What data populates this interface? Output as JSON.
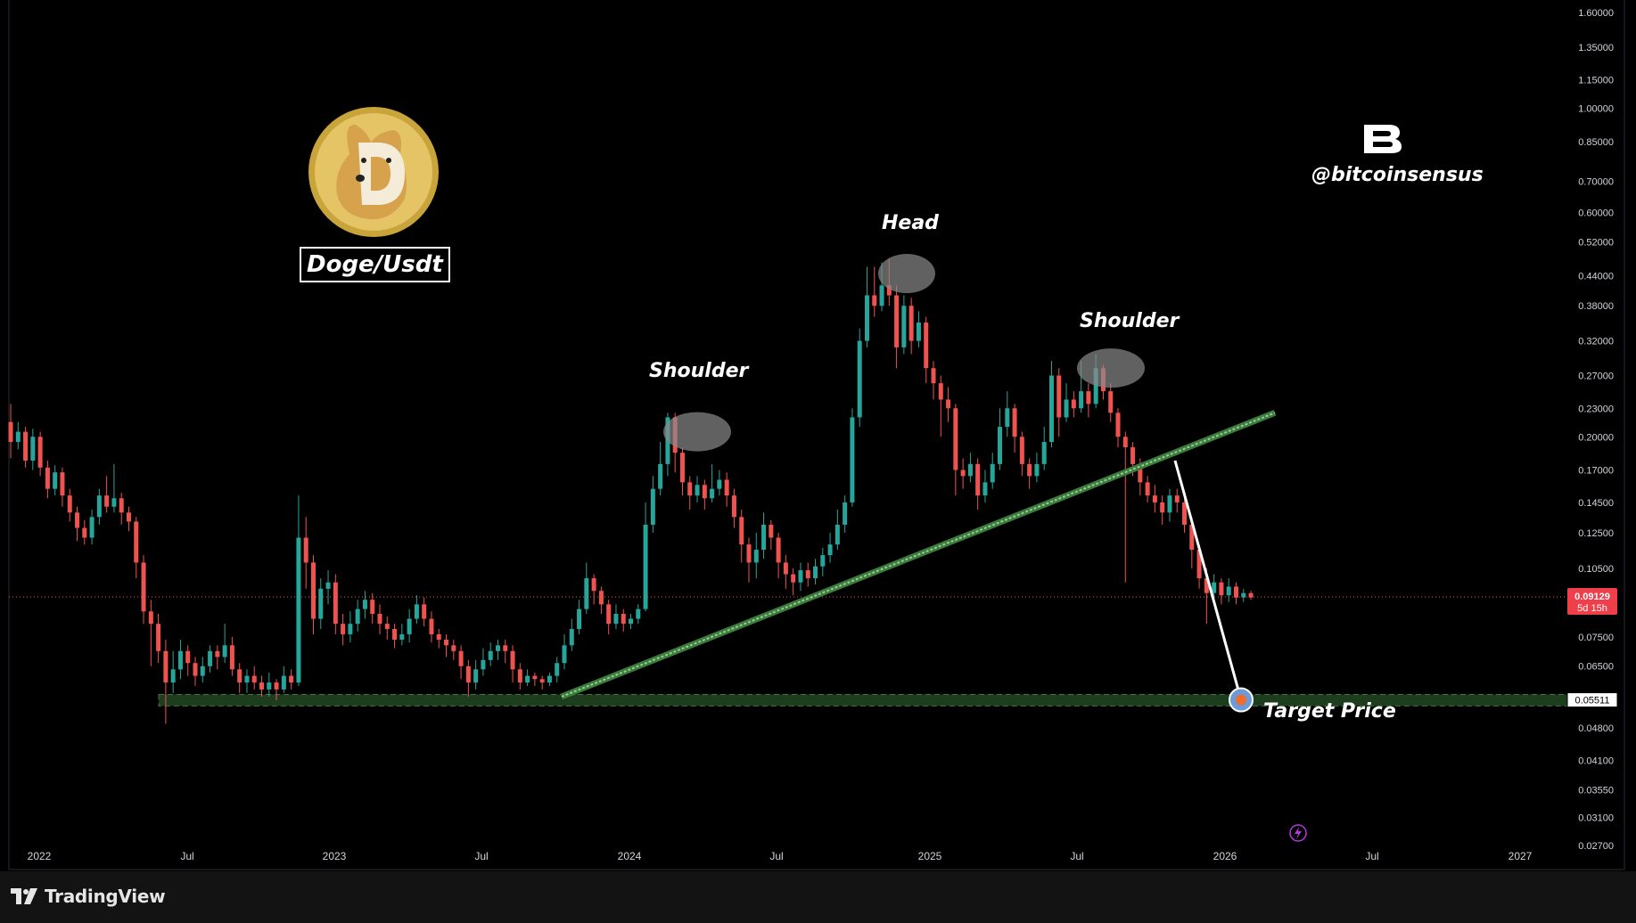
{
  "chart_data": {
    "type": "candlestick",
    "pair_label": "Doge/Usdt",
    "handle": "@bitcoinsensus",
    "y_scale": "log",
    "ylim": [
      0.024,
      1.7
    ],
    "y_ticks": [
      "1.60000",
      "1.35000",
      "1.15000",
      "1.00000",
      "0.85000",
      "0.70000",
      "0.60000",
      "0.52000",
      "0.44000",
      "0.38000",
      "0.32000",
      "0.27000",
      "0.23000",
      "0.20000",
      "0.17000",
      "0.14500",
      "0.12500",
      "0.10500",
      "0.07500",
      "0.06500",
      "0.04800",
      "0.04100",
      "0.03550",
      "0.03100",
      "0.02700"
    ],
    "x_ticks": [
      "2022",
      "Jul",
      "2023",
      "Jul",
      "2024",
      "Jul",
      "2025",
      "Jul",
      "2026",
      "Jul",
      "2027"
    ],
    "last_price": "0.09129",
    "last_price_countdown": "5d 15h",
    "target_price": "0.05511",
    "annotations": {
      "left_shoulder": "Shoulder",
      "head": "Head",
      "right_shoulder": "Shoulder",
      "target": "Target Price"
    },
    "colors": {
      "up": "#26a69a",
      "down": "#ef5350",
      "trendline": "#5cb85c",
      "zone": "#1e3d1e",
      "background": "#000000"
    },
    "candles": [
      [
        0.215,
        0.195,
        0.235,
        0.18
      ],
      [
        0.195,
        0.205,
        0.215,
        0.188
      ],
      [
        0.205,
        0.178,
        0.21,
        0.172
      ],
      [
        0.178,
        0.2,
        0.208,
        0.17
      ],
      [
        0.2,
        0.172,
        0.205,
        0.165
      ],
      [
        0.172,
        0.155,
        0.178,
        0.148
      ],
      [
        0.155,
        0.168,
        0.174,
        0.15
      ],
      [
        0.168,
        0.15,
        0.172,
        0.142
      ],
      [
        0.15,
        0.138,
        0.155,
        0.132
      ],
      [
        0.138,
        0.128,
        0.142,
        0.12
      ],
      [
        0.128,
        0.122,
        0.133,
        0.118
      ],
      [
        0.122,
        0.135,
        0.14,
        0.118
      ],
      [
        0.135,
        0.15,
        0.155,
        0.13
      ],
      [
        0.15,
        0.142,
        0.165,
        0.138
      ],
      [
        0.142,
        0.148,
        0.175,
        0.138
      ],
      [
        0.148,
        0.138,
        0.152,
        0.13
      ],
      [
        0.138,
        0.132,
        0.142,
        0.126
      ],
      [
        0.132,
        0.108,
        0.135,
        0.1
      ],
      [
        0.108,
        0.085,
        0.112,
        0.08
      ],
      [
        0.085,
        0.08,
        0.09,
        0.065
      ],
      [
        0.08,
        0.07,
        0.084,
        0.066
      ],
      [
        0.07,
        0.06,
        0.074,
        0.049
      ],
      [
        0.06,
        0.064,
        0.07,
        0.057
      ],
      [
        0.064,
        0.07,
        0.074,
        0.061
      ],
      [
        0.07,
        0.066,
        0.072,
        0.062
      ],
      [
        0.066,
        0.062,
        0.068,
        0.059
      ],
      [
        0.062,
        0.065,
        0.068,
        0.06
      ],
      [
        0.065,
        0.07,
        0.072,
        0.063
      ],
      [
        0.07,
        0.068,
        0.072,
        0.064
      ],
      [
        0.068,
        0.072,
        0.08,
        0.066
      ],
      [
        0.072,
        0.064,
        0.075,
        0.062
      ],
      [
        0.064,
        0.06,
        0.066,
        0.057
      ],
      [
        0.06,
        0.062,
        0.064,
        0.057
      ],
      [
        0.062,
        0.06,
        0.065,
        0.058
      ],
      [
        0.06,
        0.058,
        0.062,
        0.056
      ],
      [
        0.058,
        0.06,
        0.063,
        0.056
      ],
      [
        0.06,
        0.058,
        0.061,
        0.055
      ],
      [
        0.058,
        0.062,
        0.065,
        0.057
      ],
      [
        0.062,
        0.06,
        0.064,
        0.058
      ],
      [
        0.06,
        0.122,
        0.15,
        0.059
      ],
      [
        0.122,
        0.108,
        0.135,
        0.095
      ],
      [
        0.108,
        0.082,
        0.112,
        0.076
      ],
      [
        0.082,
        0.095,
        0.1,
        0.078
      ],
      [
        0.095,
        0.098,
        0.104,
        0.088
      ],
      [
        0.098,
        0.08,
        0.102,
        0.076
      ],
      [
        0.08,
        0.076,
        0.084,
        0.072
      ],
      [
        0.076,
        0.08,
        0.085,
        0.073
      ],
      [
        0.08,
        0.086,
        0.09,
        0.077
      ],
      [
        0.086,
        0.09,
        0.094,
        0.082
      ],
      [
        0.09,
        0.084,
        0.093,
        0.08
      ],
      [
        0.084,
        0.08,
        0.088,
        0.076
      ],
      [
        0.08,
        0.078,
        0.083,
        0.074
      ],
      [
        0.078,
        0.074,
        0.08,
        0.071
      ],
      [
        0.074,
        0.076,
        0.08,
        0.072
      ],
      [
        0.076,
        0.082,
        0.086,
        0.073
      ],
      [
        0.082,
        0.088,
        0.092,
        0.08
      ],
      [
        0.088,
        0.082,
        0.091,
        0.079
      ],
      [
        0.082,
        0.076,
        0.085,
        0.073
      ],
      [
        0.076,
        0.074,
        0.078,
        0.071
      ],
      [
        0.074,
        0.072,
        0.076,
        0.068
      ],
      [
        0.072,
        0.07,
        0.074,
        0.067
      ],
      [
        0.07,
        0.065,
        0.072,
        0.061
      ],
      [
        0.065,
        0.06,
        0.067,
        0.056
      ],
      [
        0.06,
        0.064,
        0.067,
        0.058
      ],
      [
        0.064,
        0.067,
        0.071,
        0.062
      ],
      [
        0.067,
        0.07,
        0.073,
        0.065
      ],
      [
        0.07,
        0.072,
        0.074,
        0.067
      ],
      [
        0.072,
        0.07,
        0.074,
        0.066
      ],
      [
        0.07,
        0.064,
        0.072,
        0.06
      ],
      [
        0.064,
        0.06,
        0.066,
        0.058
      ],
      [
        0.06,
        0.062,
        0.064,
        0.059
      ],
      [
        0.062,
        0.061,
        0.063,
        0.059
      ],
      [
        0.061,
        0.06,
        0.062,
        0.058
      ],
      [
        0.06,
        0.062,
        0.063,
        0.059
      ],
      [
        0.062,
        0.066,
        0.068,
        0.06
      ],
      [
        0.066,
        0.072,
        0.076,
        0.064
      ],
      [
        0.072,
        0.078,
        0.082,
        0.07
      ],
      [
        0.078,
        0.086,
        0.09,
        0.076
      ],
      [
        0.086,
        0.1,
        0.108,
        0.084
      ],
      [
        0.1,
        0.094,
        0.102,
        0.088
      ],
      [
        0.094,
        0.088,
        0.096,
        0.084
      ],
      [
        0.088,
        0.08,
        0.09,
        0.076
      ],
      [
        0.08,
        0.084,
        0.088,
        0.078
      ],
      [
        0.084,
        0.08,
        0.086,
        0.077
      ],
      [
        0.08,
        0.082,
        0.084,
        0.078
      ],
      [
        0.082,
        0.086,
        0.088,
        0.08
      ],
      [
        0.086,
        0.13,
        0.145,
        0.085
      ],
      [
        0.13,
        0.155,
        0.165,
        0.125
      ],
      [
        0.155,
        0.175,
        0.195,
        0.15
      ],
      [
        0.175,
        0.22,
        0.225,
        0.165
      ],
      [
        0.22,
        0.185,
        0.225,
        0.168
      ],
      [
        0.185,
        0.16,
        0.19,
        0.15
      ],
      [
        0.16,
        0.15,
        0.165,
        0.14
      ],
      [
        0.15,
        0.158,
        0.165,
        0.145
      ],
      [
        0.158,
        0.148,
        0.162,
        0.14
      ],
      [
        0.148,
        0.155,
        0.175,
        0.145
      ],
      [
        0.155,
        0.162,
        0.17,
        0.15
      ],
      [
        0.162,
        0.15,
        0.168,
        0.142
      ],
      [
        0.15,
        0.135,
        0.155,
        0.128
      ],
      [
        0.135,
        0.118,
        0.14,
        0.108
      ],
      [
        0.118,
        0.108,
        0.122,
        0.098
      ],
      [
        0.108,
        0.115,
        0.125,
        0.1
      ],
      [
        0.115,
        0.13,
        0.138,
        0.11
      ],
      [
        0.13,
        0.122,
        0.133,
        0.115
      ],
      [
        0.122,
        0.108,
        0.125,
        0.1
      ],
      [
        0.108,
        0.102,
        0.112,
        0.095
      ],
      [
        0.102,
        0.098,
        0.105,
        0.092
      ],
      [
        0.098,
        0.104,
        0.108,
        0.094
      ],
      [
        0.104,
        0.1,
        0.108,
        0.096
      ],
      [
        0.1,
        0.106,
        0.11,
        0.097
      ],
      [
        0.106,
        0.112,
        0.116,
        0.101
      ],
      [
        0.112,
        0.118,
        0.125,
        0.108
      ],
      [
        0.118,
        0.13,
        0.14,
        0.115
      ],
      [
        0.13,
        0.145,
        0.15,
        0.125
      ],
      [
        0.145,
        0.22,
        0.23,
        0.142
      ],
      [
        0.22,
        0.32,
        0.34,
        0.21
      ],
      [
        0.32,
        0.4,
        0.46,
        0.31
      ],
      [
        0.4,
        0.38,
        0.46,
        0.36
      ],
      [
        0.38,
        0.42,
        0.47,
        0.37
      ],
      [
        0.42,
        0.4,
        0.48,
        0.38
      ],
      [
        0.4,
        0.31,
        0.42,
        0.28
      ],
      [
        0.31,
        0.38,
        0.4,
        0.3
      ],
      [
        0.38,
        0.32,
        0.395,
        0.3
      ],
      [
        0.32,
        0.35,
        0.37,
        0.31
      ],
      [
        0.35,
        0.28,
        0.36,
        0.26
      ],
      [
        0.28,
        0.26,
        0.29,
        0.24
      ],
      [
        0.26,
        0.24,
        0.27,
        0.2
      ],
      [
        0.24,
        0.23,
        0.255,
        0.215
      ],
      [
        0.23,
        0.17,
        0.235,
        0.15
      ],
      [
        0.17,
        0.165,
        0.18,
        0.155
      ],
      [
        0.165,
        0.175,
        0.185,
        0.16
      ],
      [
        0.175,
        0.15,
        0.18,
        0.14
      ],
      [
        0.15,
        0.16,
        0.17,
        0.145
      ],
      [
        0.16,
        0.175,
        0.185,
        0.155
      ],
      [
        0.175,
        0.21,
        0.23,
        0.17
      ],
      [
        0.21,
        0.23,
        0.25,
        0.2
      ],
      [
        0.23,
        0.2,
        0.235,
        0.185
      ],
      [
        0.2,
        0.175,
        0.205,
        0.165
      ],
      [
        0.175,
        0.165,
        0.18,
        0.155
      ],
      [
        0.165,
        0.175,
        0.185,
        0.16
      ],
      [
        0.175,
        0.195,
        0.21,
        0.17
      ],
      [
        0.195,
        0.27,
        0.29,
        0.19
      ],
      [
        0.27,
        0.22,
        0.28,
        0.2
      ],
      [
        0.22,
        0.24,
        0.26,
        0.215
      ],
      [
        0.24,
        0.23,
        0.25,
        0.22
      ],
      [
        0.23,
        0.25,
        0.29,
        0.225
      ],
      [
        0.25,
        0.235,
        0.26,
        0.22
      ],
      [
        0.235,
        0.28,
        0.3,
        0.23
      ],
      [
        0.28,
        0.25,
        0.285,
        0.24
      ],
      [
        0.25,
        0.225,
        0.26,
        0.215
      ],
      [
        0.225,
        0.2,
        0.23,
        0.19
      ],
      [
        0.2,
        0.19,
        0.205,
        0.098
      ],
      [
        0.19,
        0.175,
        0.195,
        0.165
      ],
      [
        0.175,
        0.16,
        0.18,
        0.15
      ],
      [
        0.16,
        0.15,
        0.165,
        0.145
      ],
      [
        0.15,
        0.145,
        0.158,
        0.138
      ],
      [
        0.145,
        0.138,
        0.15,
        0.13
      ],
      [
        0.138,
        0.15,
        0.155,
        0.132
      ],
      [
        0.15,
        0.145,
        0.155,
        0.138
      ],
      [
        0.145,
        0.13,
        0.15,
        0.125
      ],
      [
        0.13,
        0.115,
        0.135,
        0.105
      ],
      [
        0.115,
        0.1,
        0.118,
        0.095
      ],
      [
        0.1,
        0.093,
        0.105,
        0.08
      ],
      [
        0.093,
        0.098,
        0.102,
        0.09
      ],
      [
        0.098,
        0.092,
        0.1,
        0.088
      ],
      [
        0.092,
        0.096,
        0.1,
        0.089
      ],
      [
        0.096,
        0.091,
        0.098,
        0.088
      ],
      [
        0.091,
        0.093,
        0.095,
        0.089
      ],
      [
        0.093,
        0.091,
        0.094,
        0.09
      ]
    ]
  }
}
